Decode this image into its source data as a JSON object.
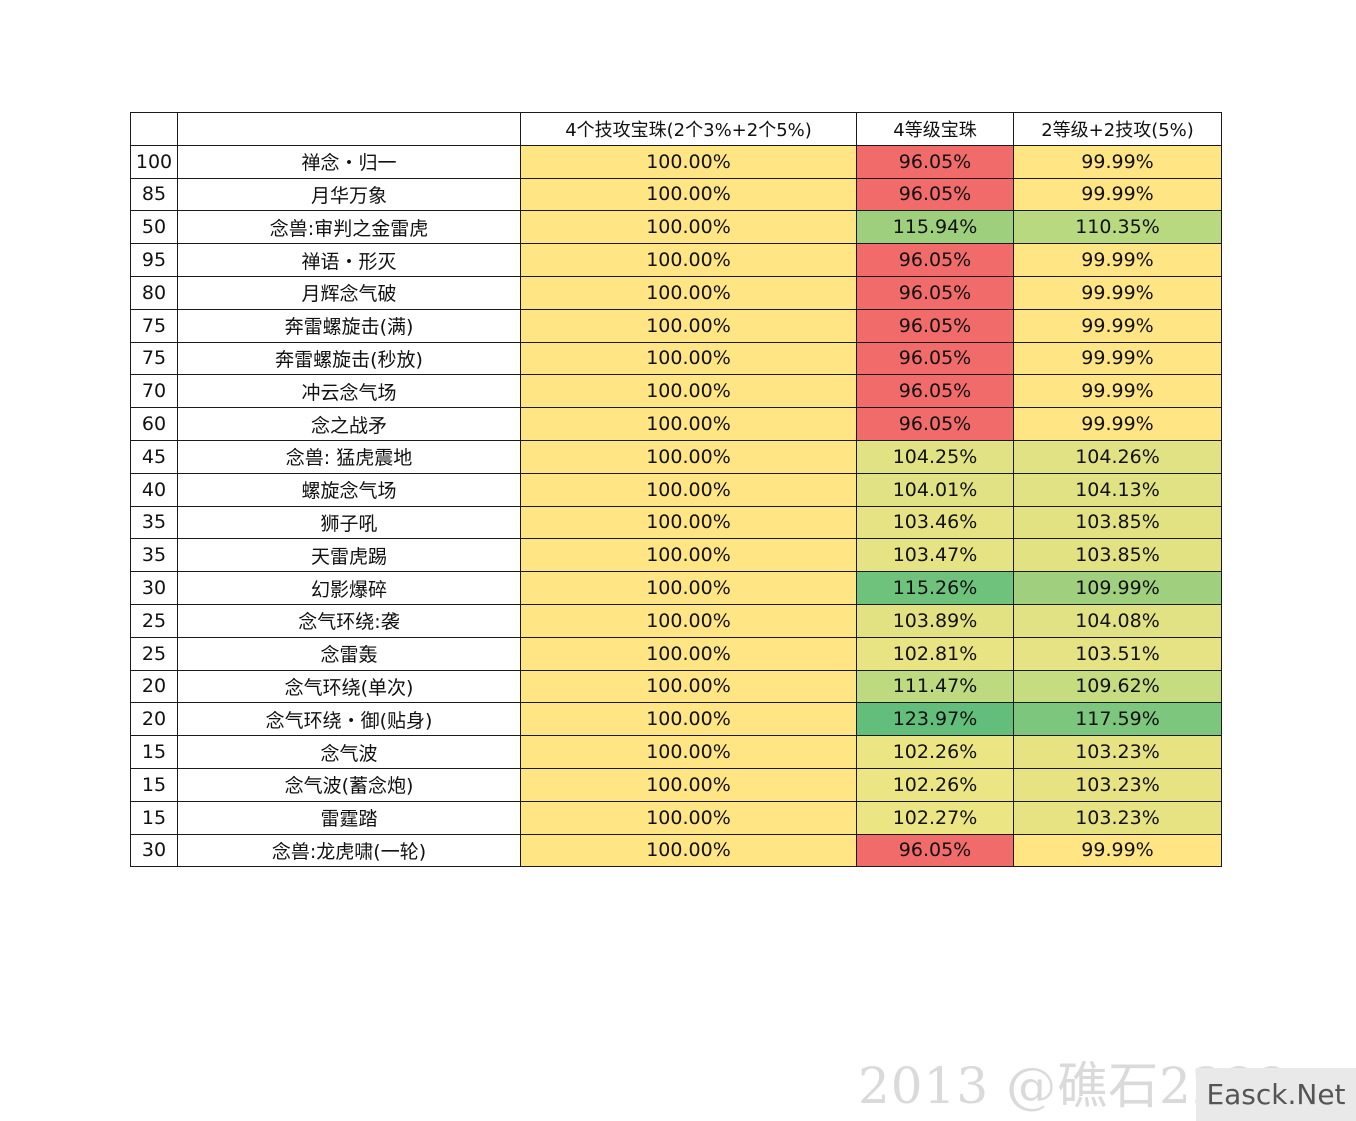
{
  "colors": {
    "yellow": "#ffe583",
    "red": "#f26b6b",
    "green_strong": "#63be7b",
    "green_mid": "#7dc67d",
    "green_light": "#a2d17e",
    "green_pale": "#c4dc82",
    "yellow_green": "#dbe182",
    "yellow_green2": "#e1e283"
  },
  "table": {
    "headers": [
      "",
      "",
      "4个技攻宝珠(2个3%+2个5%)",
      "4等级宝珠",
      "2等级+2技攻(5%)"
    ],
    "rows": [
      {
        "id": "100",
        "name": "禅念・归一",
        "a": "100.00%",
        "b": "96.05%",
        "c": "99.99%",
        "b_color": "#f26b6b",
        "c_color": "#ffe583"
      },
      {
        "id": "85",
        "name": "月华万象",
        "a": "100.00%",
        "b": "96.05%",
        "c": "99.99%",
        "b_color": "#f26b6b",
        "c_color": "#ffe583"
      },
      {
        "id": "50",
        "name": "念兽:审判之金雷虎",
        "a": "100.00%",
        "b": "115.94%",
        "c": "110.35%",
        "b_color": "#9ecf7d",
        "c_color": "#b8d97f"
      },
      {
        "id": "95",
        "name": "禅语・形灭",
        "a": "100.00%",
        "b": "96.05%",
        "c": "99.99%",
        "b_color": "#f26b6b",
        "c_color": "#ffe583"
      },
      {
        "id": "80",
        "name": "月辉念气破",
        "a": "100.00%",
        "b": "96.05%",
        "c": "99.99%",
        "b_color": "#f26b6b",
        "c_color": "#ffe583"
      },
      {
        "id": "75",
        "name": "奔雷螺旋击(满)",
        "a": "100.00%",
        "b": "96.05%",
        "c": "99.99%",
        "b_color": "#f26b6b",
        "c_color": "#ffe583"
      },
      {
        "id": "75",
        "name": "奔雷螺旋击(秒放)",
        "a": "100.00%",
        "b": "96.05%",
        "c": "99.99%",
        "b_color": "#f26b6b",
        "c_color": "#ffe583"
      },
      {
        "id": "70",
        "name": "冲云念气场",
        "a": "100.00%",
        "b": "96.05%",
        "c": "99.99%",
        "b_color": "#f26b6b",
        "c_color": "#ffe583"
      },
      {
        "id": "60",
        "name": "念之战矛",
        "a": "100.00%",
        "b": "96.05%",
        "c": "99.99%",
        "b_color": "#f26b6b",
        "c_color": "#ffe583"
      },
      {
        "id": "45",
        "name": "念兽: 猛虎震地",
        "a": "100.00%",
        "b": "104.25%",
        "c": "104.26%",
        "b_color": "#e0e283",
        "c_color": "#e0e283"
      },
      {
        "id": "40",
        "name": "螺旋念气场",
        "a": "100.00%",
        "b": "104.01%",
        "c": "104.13%",
        "b_color": "#e1e283",
        "c_color": "#e1e283"
      },
      {
        "id": "35",
        "name": "狮子吼",
        "a": "100.00%",
        "b": "103.46%",
        "c": "103.85%",
        "b_color": "#e5e383",
        "c_color": "#e3e283"
      },
      {
        "id": "35",
        "name": "天雷虎踢",
        "a": "100.00%",
        "b": "103.47%",
        "c": "103.85%",
        "b_color": "#e5e383",
        "c_color": "#e3e283"
      },
      {
        "id": "30",
        "name": "幻影爆碎",
        "a": "100.00%",
        "b": "115.26%",
        "c": "109.99%",
        "b_color": "#6fc27c",
        "c_color": "#a0d07e"
      },
      {
        "id": "25",
        "name": "念气环绕:袭",
        "a": "100.00%",
        "b": "103.89%",
        "c": "104.08%",
        "b_color": "#e3e283",
        "c_color": "#e1e283"
      },
      {
        "id": "25",
        "name": "念雷轰",
        "a": "100.00%",
        "b": "102.81%",
        "c": "103.51%",
        "b_color": "#e9e483",
        "c_color": "#e5e383"
      },
      {
        "id": "20",
        "name": "念气环绕(单次)",
        "a": "100.00%",
        "b": "111.47%",
        "c": "109.62%",
        "b_color": "#bdda80",
        "c_color": "#c6dc81"
      },
      {
        "id": "20",
        "name": "念气环绕・御(贴身)",
        "a": "100.00%",
        "b": "123.97%",
        "c": "117.59%",
        "b_color": "#63be7b",
        "c_color": "#7dc67d"
      },
      {
        "id": "15",
        "name": "念气波",
        "a": "100.00%",
        "b": "102.26%",
        "c": "103.23%",
        "b_color": "#ece583",
        "c_color": "#e7e383"
      },
      {
        "id": "15",
        "name": "念气波(蓄念炮)",
        "a": "100.00%",
        "b": "102.26%",
        "c": "103.23%",
        "b_color": "#ece583",
        "c_color": "#e7e383"
      },
      {
        "id": "15",
        "name": "雷霆踏",
        "a": "100.00%",
        "b": "102.27%",
        "c": "103.23%",
        "b_color": "#ece583",
        "c_color": "#e7e383"
      },
      {
        "id": "30",
        "name": "念兽:龙虎啸(一轮)",
        "a": "100.00%",
        "b": "96.05%",
        "c": "99.99%",
        "b_color": "#f26b6b",
        "c_color": "#ffe583"
      }
    ]
  },
  "watermark": {
    "text": "2013 @礁石2222",
    "site": "Easck.Net"
  }
}
